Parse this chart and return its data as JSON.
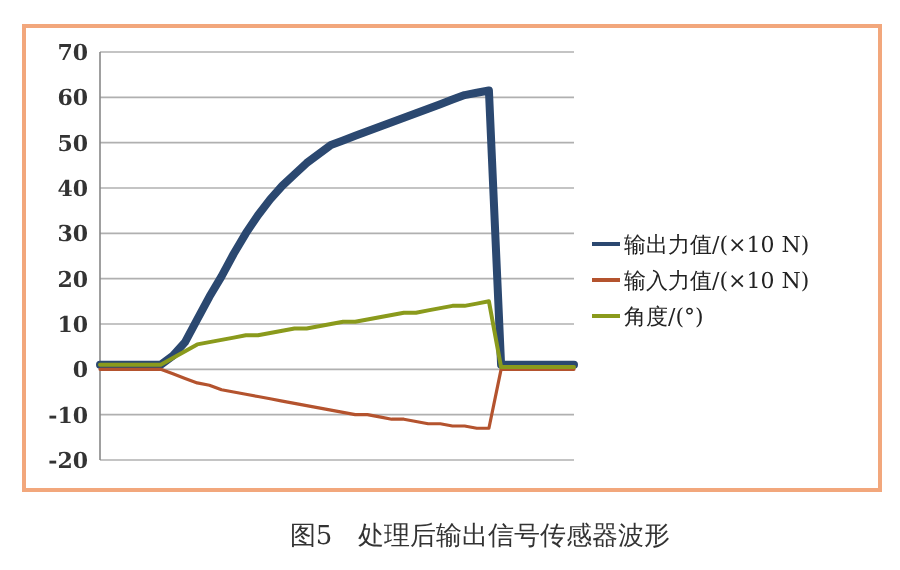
{
  "chart_data": {
    "type": "line",
    "categories": [
      null,
      null,
      null,
      null,
      null,
      null,
      null,
      null,
      null,
      null,
      null,
      null,
      null,
      null,
      null,
      null,
      null,
      null,
      null,
      null,
      null,
      null,
      null,
      null,
      null,
      null,
      null,
      null,
      null,
      null,
      null,
      null,
      null,
      null,
      null,
      null,
      null,
      null,
      null,
      null
    ],
    "series": [
      {
        "name": "输出力值/(×10 N)",
        "color": "#2b4870",
        "values": [
          1,
          1,
          1,
          1,
          1,
          1,
          3,
          6,
          11,
          16,
          20.5,
          25.5,
          30,
          34,
          37.5,
          40.5,
          43,
          45.5,
          47.5,
          49.5,
          50.5,
          51.5,
          52.5,
          53.5,
          54.5,
          55.5,
          56.5,
          57.5,
          58.5,
          59.5,
          60.5,
          61,
          61.5,
          1,
          1,
          1,
          1,
          1,
          1,
          1
        ]
      },
      {
        "name": "输入力值/(×10 N)",
        "color": "#b4532e",
        "values": [
          0,
          0,
          0,
          0,
          0,
          0,
          -1,
          -2,
          -3,
          -3.5,
          -4.5,
          -5,
          -5.5,
          -6,
          -6.5,
          -7,
          -7.5,
          -8,
          -8.5,
          -9,
          -9.5,
          -10,
          -10,
          -10.5,
          -11,
          -11,
          -11.5,
          -12,
          -12,
          -12.5,
          -12.5,
          -13,
          -13,
          0,
          0,
          0,
          0,
          0,
          0,
          0
        ]
      },
      {
        "name": "角度/(°)",
        "color": "#8a9a1c",
        "values": [
          1,
          1,
          1,
          1,
          1,
          1,
          2.5,
          4,
          5.5,
          6,
          6.5,
          7,
          7.5,
          7.5,
          8,
          8.5,
          9,
          9,
          9.5,
          10,
          10.5,
          10.5,
          11,
          11.5,
          12,
          12.5,
          12.5,
          13,
          13.5,
          14,
          14,
          14.5,
          15,
          0.5,
          0.5,
          0.5,
          0.5,
          0.5,
          0.5,
          0.5
        ]
      }
    ],
    "ylim": [
      -20,
      70
    ],
    "yticks": [
      -20,
      -10,
      0,
      10,
      20,
      30,
      40,
      50,
      60,
      70
    ],
    "grid": "y",
    "legend": "right",
    "tick_labels": "y",
    "marker": "none",
    "line_style": "solid",
    "annotations": [
      "图5　处理后输出信号传感器波形"
    ]
  }
}
